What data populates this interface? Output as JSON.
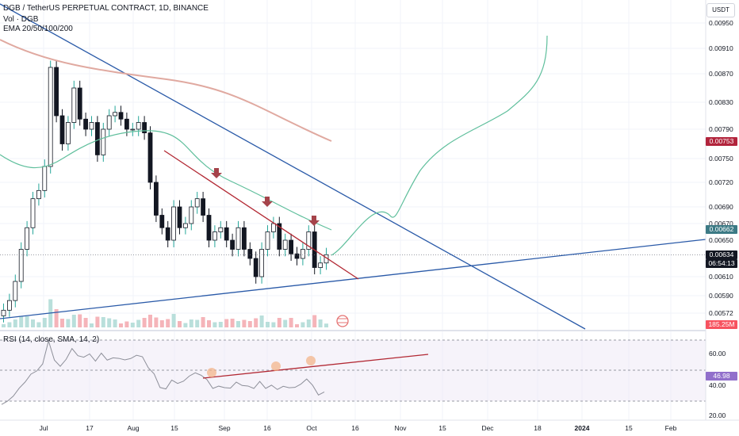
{
  "header": {
    "symbol_line": "DGB / TetherUS PERPETUAL CONTRACT, 1D, BINANCE",
    "vol_line": "Vol · DGB",
    "ema_line": "EMA 20/50/100/200",
    "currency_button": "USDT"
  },
  "price_axis": {
    "ticks": [
      "0.00950",
      "0.00910",
      "0.00870",
      "0.00830",
      "0.00790",
      "0.00750",
      "0.00720",
      "0.00690",
      "0.00670",
      "0.00650",
      "0.00610",
      "0.00590",
      "0.00572"
    ],
    "badges": {
      "red_label": "0.00753",
      "ema_value": "0.00662",
      "last_price": "0.00634",
      "countdown": "06:54:13",
      "volume": "185.25M"
    },
    "colors": {
      "red_badge": "#b2243c",
      "ema_badge": "#3c7a85",
      "last_badge": "#131722",
      "volume_badge": "#f7525f"
    }
  },
  "rsi_panel": {
    "title": "RSI (14, close, SMA, 14, 2)",
    "ticks": [
      "60.00",
      "40.00",
      "20.00"
    ],
    "value_badge": "46.98"
  },
  "x_axis": {
    "ticks": [
      "Jul",
      "17",
      "Aug",
      "15",
      "Sep",
      "16",
      "Oct",
      "16",
      "Nov",
      "15",
      "Dec",
      "18",
      "2024",
      "15",
      "Feb"
    ]
  },
  "chart_data": {
    "type": "candlestick",
    "candles_approx": {
      "period": "1D",
      "x_start_label": "Jul",
      "close_path": [
        0.00575,
        0.00585,
        0.00605,
        0.0064,
        0.00665,
        0.007,
        0.0071,
        0.0074,
        0.0088,
        0.0081,
        0.0077,
        0.008,
        0.0085,
        0.00805,
        0.0079,
        0.008,
        0.00755,
        0.0079,
        0.0081,
        0.00815,
        0.00805,
        0.0079,
        0.0079,
        0.008,
        0.00785,
        0.0072,
        0.0068,
        0.00665,
        0.0065,
        0.0069,
        0.00665,
        0.0067,
        0.0069,
        0.007,
        0.0068,
        0.0065,
        0.0066,
        0.00665,
        0.0065,
        0.0064,
        0.00665,
        0.0064,
        0.0063,
        0.0061,
        0.0064,
        0.0066,
        0.0067,
        0.0064,
        0.0065,
        0.00635,
        0.0063,
        0.0064,
        0.0066,
        0.0062,
        0.00625,
        0.00634
      ]
    },
    "trendlines": [
      {
        "name": "descending",
        "color": "#2962ff"
      },
      {
        "name": "ascending support",
        "color": "#2962ff"
      },
      {
        "name": "short resistance",
        "color": "#b22833"
      }
    ],
    "ema_lines": [
      {
        "color": "#e0a9a0"
      },
      {
        "color": "#4caf8a"
      }
    ],
    "current_price": 0.00634,
    "rsi_value": 46.98,
    "rsi_levels": [
      70,
      50,
      30
    ]
  }
}
